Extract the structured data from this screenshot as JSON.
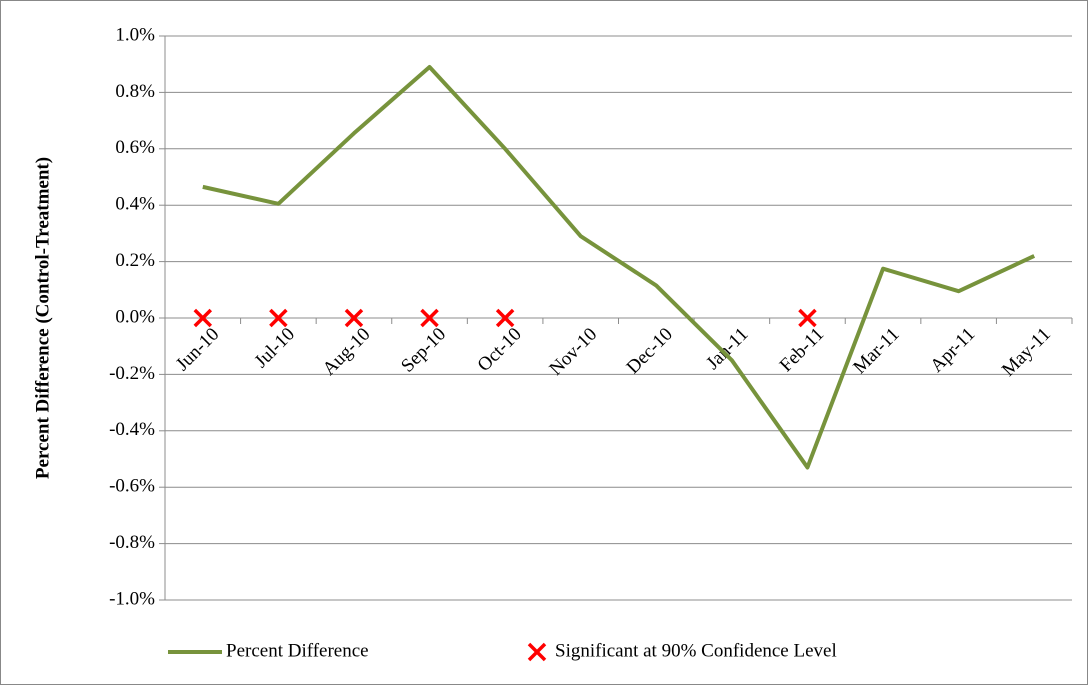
{
  "chart_data": {
    "type": "line",
    "y_label": "Percent Difference (Control-Treatment)",
    "categories": [
      "Jun-10",
      "Jul-10",
      "Aug-10",
      "Sep-10",
      "Oct-10",
      "Nov-10",
      "Dec-10",
      "Jan-11",
      "Feb-11",
      "Mar-11",
      "Apr-11",
      "May-11"
    ],
    "series": [
      {
        "name": "Percent Difference",
        "color": "#77933c",
        "style": "line",
        "values": [
          0.465,
          0.405,
          0.655,
          0.89,
          0.6,
          0.29,
          0.115,
          -0.15,
          -0.53,
          0.175,
          0.095,
          0.22
        ]
      },
      {
        "name": "Significant at 90% Confidence Level",
        "color": "#ff0000",
        "style": "marker",
        "values": [
          0,
          0,
          0,
          0,
          0,
          null,
          null,
          null,
          0,
          null,
          null,
          null
        ]
      }
    ],
    "ylim": [
      -1.0,
      1.0
    ],
    "yticks": [
      {
        "value": 1.0,
        "label": "1.0%"
      },
      {
        "value": 0.8,
        "label": "0.8%"
      },
      {
        "value": 0.6,
        "label": "0.6%"
      },
      {
        "value": 0.4,
        "label": "0.4%"
      },
      {
        "value": 0.2,
        "label": "0.2%"
      },
      {
        "value": 0.0,
        "label": "0.0%"
      },
      {
        "value": -0.2,
        "label": "-0.2%"
      },
      {
        "value": -0.4,
        "label": "-0.4%"
      },
      {
        "value": -0.6,
        "label": "-0.6%"
      },
      {
        "value": -0.8,
        "label": "-0.8%"
      },
      {
        "value": -1.0,
        "label": "-1.0%"
      }
    ],
    "grid": true,
    "legend": "bottom"
  }
}
